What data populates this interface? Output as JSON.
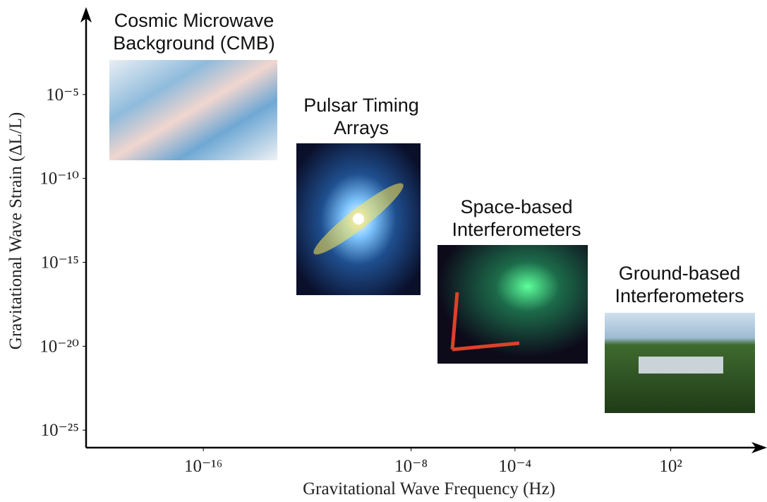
{
  "chart_data": {
    "type": "annotated-axes",
    "x_label": "Gravitational Wave Frequency (Hz)",
    "y_label": "Gravitational Wave Strain (ΔL/L)",
    "xscale": "log",
    "yscale": "log",
    "xlim": [
      1e-20,
      100000.0
    ],
    "ylim": [
      1e-26,
      1
    ],
    "xticks": [
      {
        "value": 1e-16,
        "label": "10⁻¹⁶"
      },
      {
        "value": 1e-08,
        "label": "10⁻⁸"
      },
      {
        "value": 0.0001,
        "label": "10⁻⁴"
      },
      {
        "value": 100,
        "label": "10²"
      }
    ],
    "yticks": [
      {
        "value": 1e-05,
        "label": "10⁻⁵"
      },
      {
        "value": 1e-10,
        "label": "10⁻¹⁰"
      },
      {
        "value": 1e-15,
        "label": "10⁻¹⁵"
      },
      {
        "value": 1e-20,
        "label": "10⁻²⁰"
      },
      {
        "value": 1e-25,
        "label": "10⁻²⁵"
      }
    ],
    "annotations": [
      {
        "lines": [
          "Cosmic Microwave",
          "Background (CMB)"
        ]
      },
      {
        "lines": [
          "Pulsar Timing",
          "Arrays"
        ]
      },
      {
        "lines": [
          "Space-based",
          "Interferometers"
        ]
      },
      {
        "lines": [
          "Ground-based",
          "Interferometers"
        ]
      }
    ]
  }
}
